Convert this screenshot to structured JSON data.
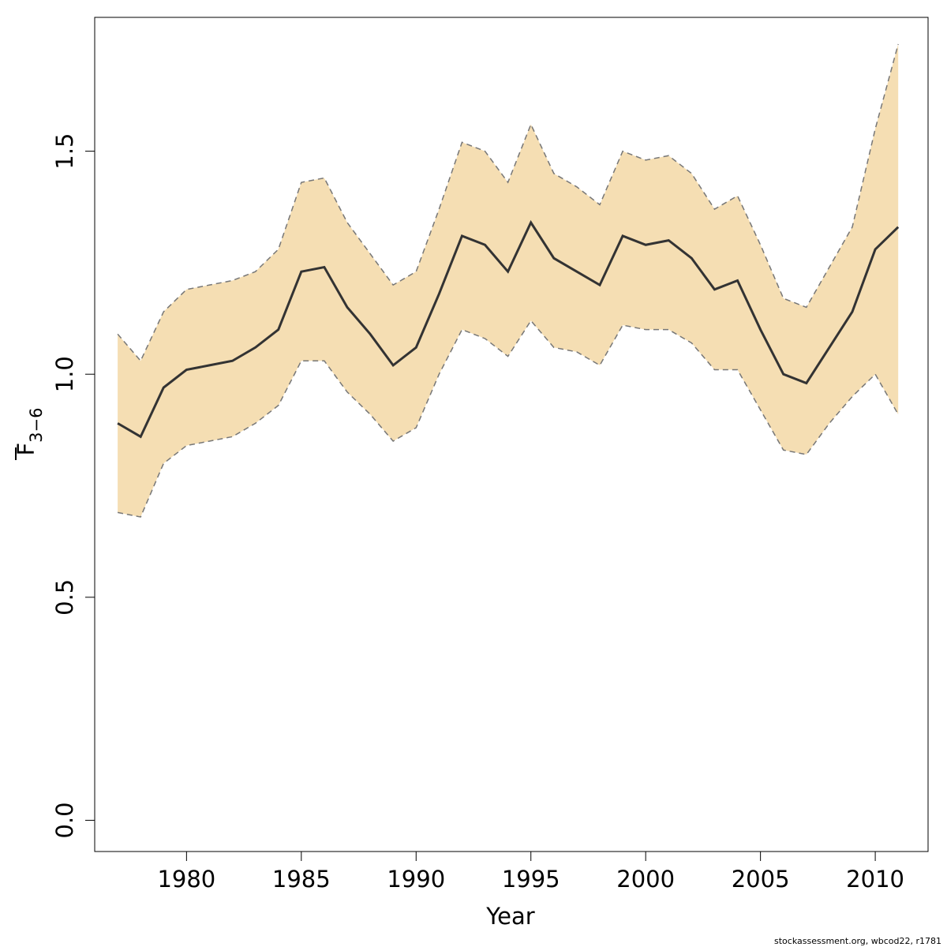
{
  "chart_data": {
    "type": "area",
    "xlabel": "Year",
    "ylabel": "F",
    "ylabel_subscript": "3−6",
    "xlim": [
      1976,
      2012.3
    ],
    "ylim": [
      -0.07,
      1.8
    ],
    "xticks": [
      1980,
      1985,
      1990,
      1995,
      2000,
      2005,
      2010
    ],
    "yticks": [
      0.0,
      0.5,
      1.0,
      1.5
    ],
    "ytick_labels": [
      "0.0",
      "0.5",
      "1.0",
      "1.5"
    ],
    "grid": false,
    "colors": {
      "band": "#f5deb3",
      "line": "#333333",
      "bounds": "#777777"
    },
    "x": [
      1977,
      1978,
      1979,
      1980,
      1981,
      1982,
      1983,
      1984,
      1985,
      1986,
      1987,
      1988,
      1989,
      1990,
      1991,
      1992,
      1993,
      1994,
      1995,
      1996,
      1997,
      1998,
      1999,
      2000,
      2001,
      2002,
      2003,
      2004,
      2005,
      2006,
      2007,
      2008,
      2009,
      2010,
      2011
    ],
    "series": [
      {
        "role": "estimate",
        "values": [
          0.89,
          0.86,
          0.97,
          1.01,
          1.02,
          1.03,
          1.06,
          1.1,
          1.23,
          1.24,
          1.15,
          1.09,
          1.02,
          1.06,
          1.18,
          1.31,
          1.29,
          1.23,
          1.34,
          1.26,
          1.23,
          1.2,
          1.31,
          1.29,
          1.3,
          1.26,
          1.19,
          1.21,
          1.1,
          1.0,
          0.98,
          1.06,
          1.14,
          1.28,
          1.33
        ]
      },
      {
        "role": "upper",
        "values": [
          1.09,
          1.03,
          1.14,
          1.19,
          1.2,
          1.21,
          1.23,
          1.28,
          1.43,
          1.44,
          1.34,
          1.27,
          1.2,
          1.23,
          1.37,
          1.52,
          1.5,
          1.43,
          1.56,
          1.45,
          1.42,
          1.38,
          1.5,
          1.48,
          1.49,
          1.45,
          1.37,
          1.4,
          1.29,
          1.17,
          1.15,
          1.24,
          1.33,
          1.55,
          1.74
        ]
      },
      {
        "role": "lower",
        "values": [
          0.69,
          0.68,
          0.8,
          0.84,
          0.85,
          0.86,
          0.89,
          0.93,
          1.03,
          1.03,
          0.96,
          0.91,
          0.85,
          0.88,
          1.0,
          1.1,
          1.08,
          1.04,
          1.12,
          1.06,
          1.05,
          1.02,
          1.11,
          1.1,
          1.1,
          1.07,
          1.01,
          1.01,
          0.92,
          0.83,
          0.82,
          0.89,
          0.95,
          1.0,
          0.91
        ]
      }
    ]
  },
  "footer": "stockassessment.org, wbcod22, r1781"
}
